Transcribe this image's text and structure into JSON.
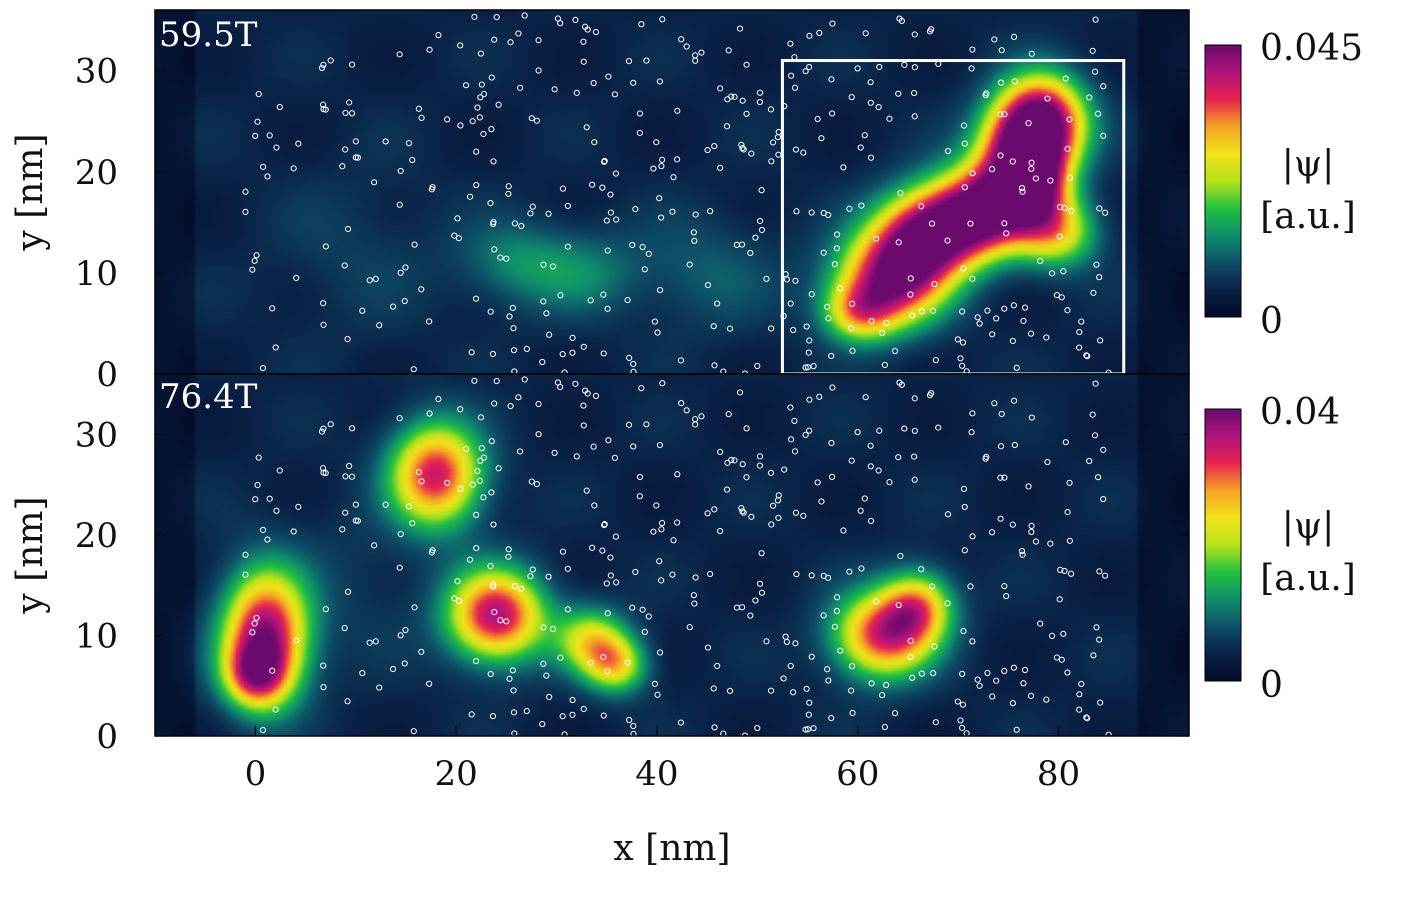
{
  "chart_data": [
    {
      "type": "heatmap",
      "panel_label": "59.5T",
      "xlim": [
        -10,
        93
      ],
      "ylim": [
        0,
        36
      ],
      "ylabel": "y [nm]",
      "y_ticks": [
        0,
        10,
        20,
        30
      ],
      "x_ticks": [],
      "colorbar": {
        "min_label": "0",
        "max_label": "0.045",
        "min": 0,
        "max": 0.045,
        "label_line1": "|ψ|",
        "label_line2": "[a.u.]"
      },
      "highlight_box": {
        "x0": 52.5,
        "x1": 86.5,
        "y0": 0,
        "y1": 31
      },
      "blobs": [
        {
          "x": 63,
          "y": 9,
          "sx": 3.8,
          "sy": 3.2,
          "a": 0.72
        },
        {
          "x": 66,
          "y": 13,
          "sx": 3.5,
          "sy": 3.2,
          "a": 0.62
        },
        {
          "x": 70,
          "y": 15,
          "sx": 3.8,
          "sy": 3.0,
          "a": 0.65
        },
        {
          "x": 74,
          "y": 17,
          "sx": 3.5,
          "sy": 3.0,
          "a": 0.62
        },
        {
          "x": 76,
          "y": 22,
          "sx": 3.0,
          "sy": 3.5,
          "a": 0.65
        },
        {
          "x": 78.5,
          "y": 25,
          "sx": 3.0,
          "sy": 3.2,
          "a": 0.85
        },
        {
          "x": 80,
          "y": 14,
          "sx": 2.8,
          "sy": 2.5,
          "a": 0.45
        },
        {
          "x": 60,
          "y": 6,
          "sx": 2.5,
          "sy": 2.0,
          "a": 0.4
        },
        {
          "x": 78,
          "y": 19,
          "sx": 2.2,
          "sy": 2.8,
          "a": 0.45
        },
        {
          "x": 26,
          "y": 11,
          "sx": 4.0,
          "sy": 3.0,
          "a": 0.18
        },
        {
          "x": 33,
          "y": 10,
          "sx": 4.0,
          "sy": 3.0,
          "a": 0.15
        },
        {
          "x": 45,
          "y": 10,
          "sx": 5.0,
          "sy": 4.0,
          "a": 0.12
        },
        {
          "x": 10,
          "y": 12,
          "sx": 6.0,
          "sy": 6.0,
          "a": 0.06
        }
      ]
    },
    {
      "type": "heatmap",
      "panel_label": "76.4T",
      "xlim": [
        -10,
        93
      ],
      "ylim": [
        0,
        36
      ],
      "xlabel": "x [nm]",
      "ylabel": "y [nm]",
      "x_ticks": [
        0,
        20,
        40,
        60,
        80
      ],
      "y_ticks": [
        0,
        10,
        20,
        30
      ],
      "colorbar": {
        "min_label": "0",
        "max_label": "0.04",
        "min": 0,
        "max": 0.04,
        "label_line1": "|ψ|",
        "label_line2": "[a.u.]"
      },
      "blobs": [
        {
          "x": 1,
          "y": 10,
          "sx": 3.0,
          "sy": 4.5,
          "a": 0.85
        },
        {
          "x": 0,
          "y": 6,
          "sx": 2.2,
          "sy": 2.2,
          "a": 0.45
        },
        {
          "x": 18,
          "y": 26,
          "sx": 3.2,
          "sy": 3.6,
          "a": 0.75
        },
        {
          "x": 24,
          "y": 12,
          "sx": 3.4,
          "sy": 3.2,
          "a": 0.8
        },
        {
          "x": 33.5,
          "y": 9.5,
          "sx": 2.5,
          "sy": 2.3,
          "a": 0.45
        },
        {
          "x": 36,
          "y": 7,
          "sx": 2.2,
          "sy": 2.0,
          "a": 0.45
        },
        {
          "x": 62.5,
          "y": 10,
          "sx": 3.5,
          "sy": 3.0,
          "a": 0.72
        },
        {
          "x": 66,
          "y": 13,
          "sx": 2.5,
          "sy": 2.5,
          "a": 0.5
        },
        {
          "x": 10,
          "y": 15,
          "sx": 6.0,
          "sy": 6.0,
          "a": 0.05
        }
      ]
    }
  ],
  "marker_color": "#ffffff",
  "box_color": "#ffffff",
  "colormap": [
    "#030a26",
    "#0a2248",
    "#0e4f68",
    "#0f8f6d",
    "#22c13f",
    "#b7e21a",
    "#f2e31a",
    "#f5a322",
    "#e8234f",
    "#b0137c",
    "#6b0a6d"
  ]
}
